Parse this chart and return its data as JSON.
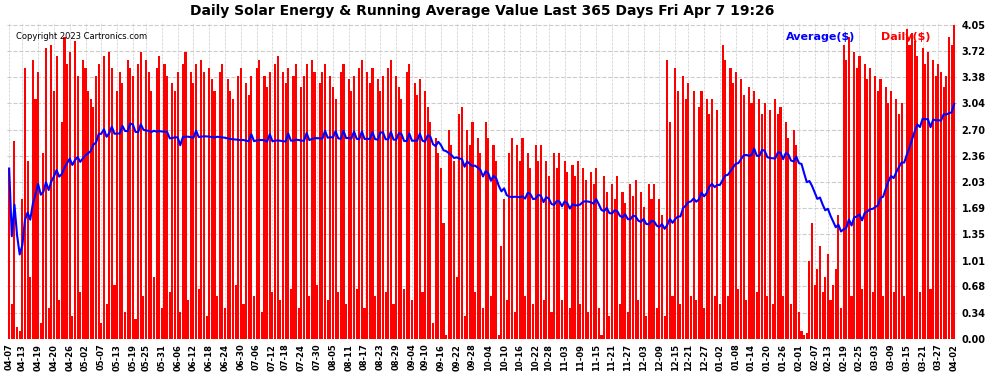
{
  "title": "Daily Solar Energy & Running Average Value Last 365 Days Fri Apr 7 19:26",
  "copyright": "Copyright 2023 Cartronics.com",
  "legend_avg": "Average($)",
  "legend_daily": "Daily($)",
  "bar_color": "#ff0000",
  "avg_line_color": "#0000ff",
  "background_color": "#ffffff",
  "plot_bg_color": "#ffffff",
  "grid_color": "#cccccc",
  "title_color": "#000000",
  "yticks": [
    0.0,
    0.34,
    0.68,
    1.01,
    1.35,
    1.69,
    2.03,
    2.36,
    2.7,
    3.04,
    3.38,
    3.72,
    4.05
  ],
  "ymax": 4.05,
  "ymin": 0.0,
  "daily_values": [
    2.2,
    0.45,
    2.55,
    0.15,
    0.1,
    1.8,
    3.5,
    2.3,
    0.8,
    3.6,
    3.1,
    3.45,
    0.2,
    2.4,
    3.75,
    0.4,
    3.8,
    3.2,
    3.65,
    0.5,
    2.8,
    3.9,
    3.55,
    3.7,
    0.3,
    3.85,
    3.4,
    0.6,
    3.6,
    3.5,
    3.2,
    3.1,
    3.0,
    3.4,
    3.55,
    0.2,
    3.65,
    0.45,
    3.7,
    3.5,
    0.7,
    3.2,
    3.45,
    3.3,
    0.35,
    3.6,
    3.5,
    3.4,
    0.25,
    3.55,
    3.7,
    0.55,
    3.6,
    3.45,
    3.2,
    0.8,
    3.5,
    3.65,
    0.4,
    3.55,
    3.4,
    0.6,
    3.3,
    3.2,
    3.45,
    0.35,
    3.55,
    3.7,
    0.5,
    3.45,
    3.3,
    3.55,
    0.65,
    3.6,
    3.45,
    0.3,
    3.5,
    3.35,
    3.2,
    0.55,
    3.45,
    3.55,
    0.4,
    3.35,
    3.2,
    3.1,
    0.7,
    3.4,
    3.5,
    0.45,
    3.3,
    3.15,
    3.4,
    0.55,
    3.5,
    3.6,
    0.35,
    3.4,
    3.25,
    3.45,
    0.6,
    3.55,
    3.65,
    0.5,
    3.45,
    3.3,
    3.5,
    0.65,
    3.4,
    3.55,
    0.4,
    3.25,
    3.4,
    3.55,
    0.55,
    3.6,
    3.45,
    0.7,
    3.3,
    3.45,
    3.55,
    0.5,
    3.4,
    3.25,
    3.1,
    0.6,
    3.45,
    3.55,
    0.45,
    3.35,
    3.2,
    3.4,
    0.65,
    3.5,
    3.6,
    0.4,
    3.45,
    3.3,
    3.5,
    0.55,
    3.35,
    3.2,
    3.4,
    0.6,
    3.5,
    3.6,
    0.45,
    3.4,
    3.25,
    3.1,
    0.65,
    3.45,
    3.55,
    0.5,
    3.3,
    3.15,
    3.35,
    0.6,
    3.2,
    3.0,
    2.8,
    0.2,
    2.6,
    2.4,
    2.2,
    1.5,
    0.05,
    2.7,
    2.5,
    2.3,
    0.8,
    2.9,
    3.0,
    0.3,
    2.7,
    2.5,
    2.8,
    0.6,
    2.6,
    2.4,
    0.4,
    2.8,
    2.6,
    0.55,
    2.5,
    2.3,
    0.05,
    1.2,
    1.8,
    0.5,
    2.4,
    2.6,
    0.35,
    2.5,
    2.3,
    2.6,
    0.55,
    2.4,
    2.2,
    0.45,
    2.5,
    2.3,
    2.5,
    0.5,
    2.3,
    2.1,
    0.35,
    2.4,
    2.2,
    2.4,
    0.5,
    2.3,
    2.15,
    0.4,
    2.25,
    2.1,
    2.3,
    0.45,
    2.2,
    2.05,
    0.35,
    2.15,
    2.0,
    2.2,
    0.4,
    0.05,
    2.1,
    1.9,
    0.3,
    2.0,
    1.8,
    2.1,
    0.45,
    1.9,
    1.75,
    0.35,
    2.0,
    1.85,
    2.05,
    0.5,
    1.9,
    1.7,
    0.3,
    2.0,
    1.8,
    2.0,
    0.4,
    1.8,
    1.6,
    0.3,
    3.6,
    2.8,
    0.55,
    3.5,
    3.2,
    0.45,
    3.4,
    3.1,
    3.3,
    0.55,
    3.2,
    0.5,
    3.0,
    3.2,
    0.4,
    3.1,
    2.9,
    3.1,
    0.55,
    2.95,
    0.45,
    3.8,
    3.6,
    0.55,
    3.5,
    3.3,
    3.45,
    0.65,
    3.35,
    3.15,
    0.5,
    3.25,
    3.05,
    3.2,
    0.6,
    3.1,
    2.9,
    3.05,
    0.55,
    2.95,
    0.45,
    3.1,
    2.9,
    3.0,
    0.55,
    2.8,
    2.6,
    0.45,
    2.7,
    2.5,
    0.35,
    0.1,
    0.05,
    0.08,
    1.0,
    1.5,
    0.7,
    0.9,
    1.2,
    0.6,
    0.8,
    1.1,
    0.5,
    0.7,
    0.9,
    1.6,
    0.4,
    3.8,
    3.6,
    3.9,
    0.55,
    3.7,
    3.5,
    3.65,
    0.65,
    3.55,
    3.35,
    3.5,
    0.6,
    3.4,
    3.2,
    3.35,
    0.55,
    3.25,
    3.05,
    3.2,
    0.6,
    3.1,
    2.9,
    3.05,
    0.55,
    4.0,
    3.8,
    3.95,
    3.85,
    3.65,
    0.6,
    3.75,
    3.55,
    3.7,
    0.65,
    3.6,
    3.4,
    3.55,
    3.45,
    3.25,
    3.4,
    3.9,
    3.8,
    4.05
  ],
  "x_labels": [
    "04-07",
    "04-13",
    "04-19",
    "04-20",
    "04-26",
    "05-02",
    "05-07",
    "05-13",
    "05-19",
    "05-25",
    "05-31",
    "06-06",
    "06-12",
    "06-18",
    "06-24",
    "06-30",
    "07-06",
    "07-12",
    "07-18",
    "07-24",
    "07-30",
    "08-05",
    "08-11",
    "08-17",
    "08-23",
    "08-29",
    "09-04",
    "09-10",
    "09-16",
    "09-22",
    "09-28",
    "10-04",
    "10-10",
    "10-16",
    "10-22",
    "10-28",
    "11-03",
    "11-09",
    "11-15",
    "11-21",
    "11-27",
    "12-03",
    "12-09",
    "12-15",
    "12-21",
    "12-27",
    "01-02",
    "01-08",
    "01-14",
    "01-20",
    "01-26",
    "02-01",
    "02-07",
    "02-13",
    "02-19",
    "02-25",
    "03-03",
    "03-09",
    "03-15",
    "03-21",
    "03-27",
    "04-02"
  ]
}
